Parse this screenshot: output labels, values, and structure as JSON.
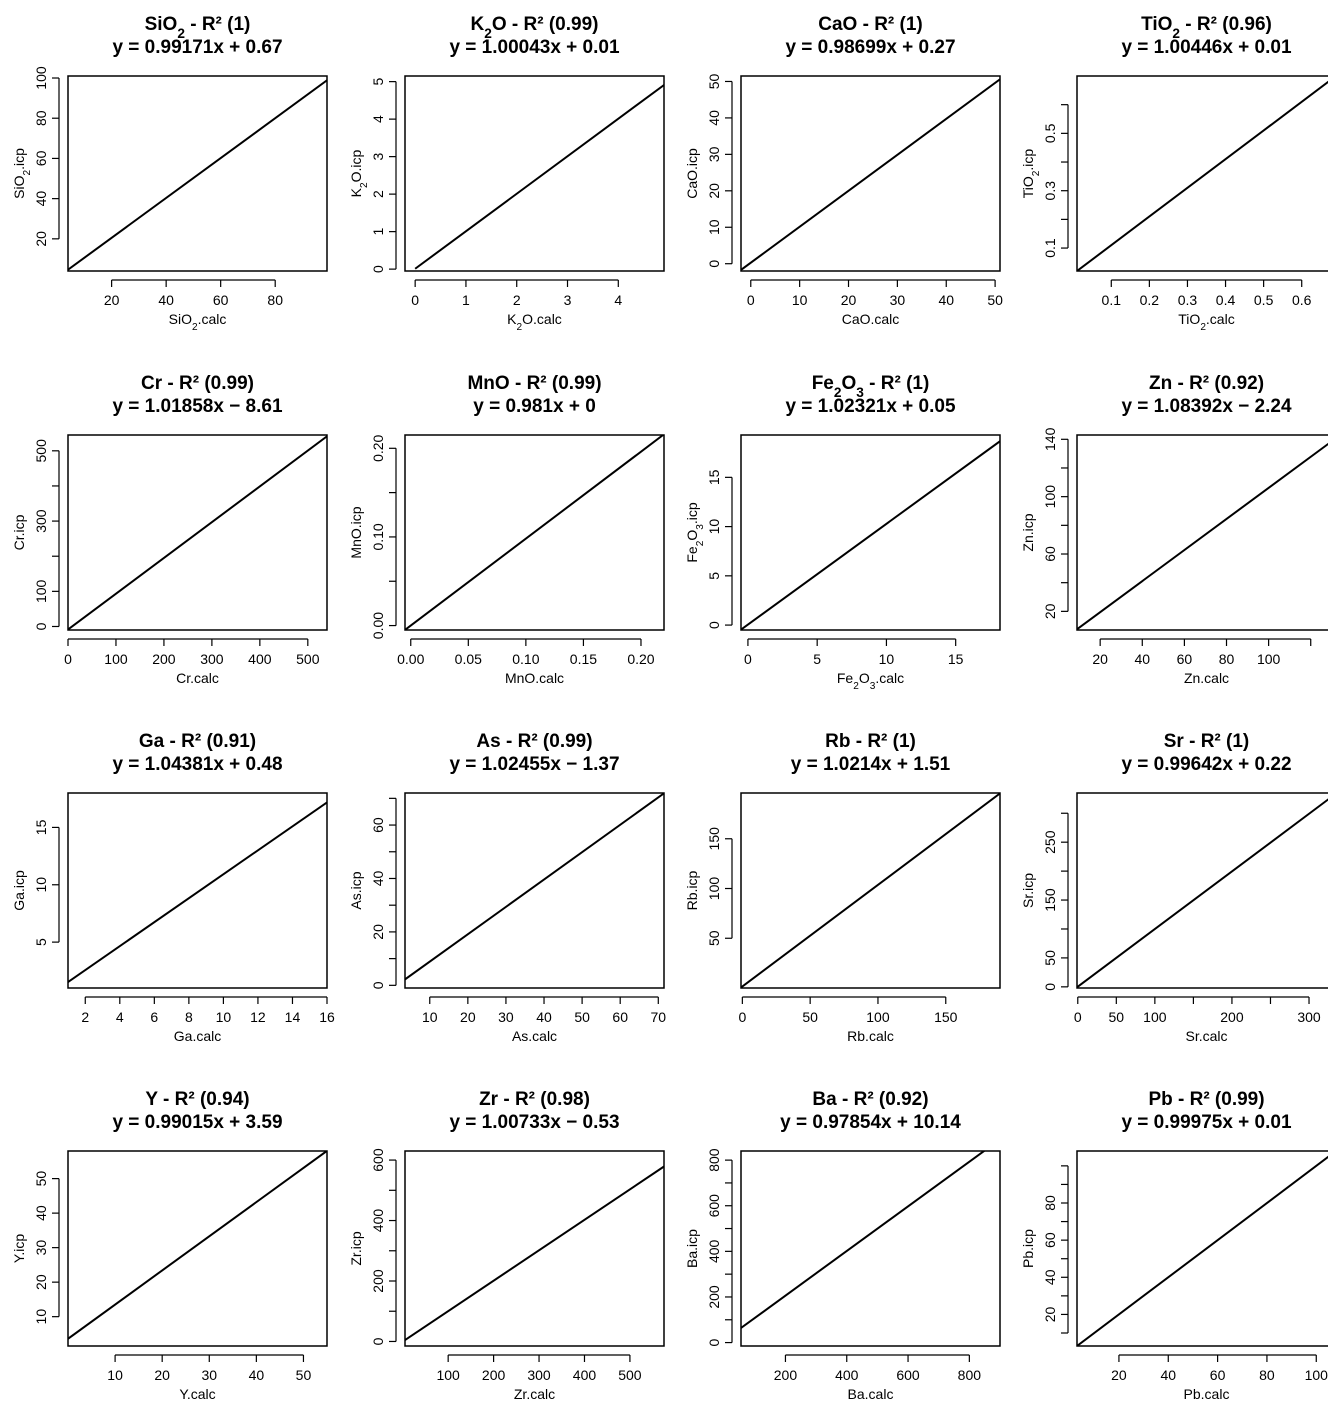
{
  "chart_data": [
    {
      "type": "line",
      "title": "SiO2 - R² (1)",
      "title_parts": [
        "SiO",
        "2",
        " - R² (1)"
      ],
      "subtitle": "y = 0.99171x + 0.67",
      "xlabel_parts": [
        "SiO",
        "2",
        ".calc"
      ],
      "ylabel_parts": [
        "SiO",
        "2",
        ".icp"
      ],
      "xlim": [
        4,
        99
      ],
      "ylim": [
        4,
        101
      ],
      "xticks": [
        20,
        40,
        60,
        80
      ],
      "yticks": [
        20,
        40,
        60,
        80,
        100
      ],
      "xminor": [],
      "yminor": [],
      "series": [
        {
          "x": [
            4,
            99
          ],
          "y": [
            4.64,
            98.85
          ]
        }
      ]
    },
    {
      "type": "line",
      "title": "K2O - R² (0.99)",
      "title_parts": [
        "K",
        "2",
        "O - R² (0.99)"
      ],
      "subtitle": "y = 1.00043x + 0.01",
      "xlabel_parts": [
        "K",
        "2",
        "O.calc"
      ],
      "ylabel_parts": [
        "K",
        "2",
        "O.icp"
      ],
      "xlim": [
        -0.2,
        4.9
      ],
      "ylim": [
        -0.05,
        5.15
      ],
      "xticks": [
        0,
        1,
        2,
        3,
        4
      ],
      "yticks": [
        0,
        1,
        2,
        3,
        4,
        5
      ],
      "xminor": [],
      "yminor": [],
      "series": [
        {
          "x": [
            0,
            4.9
          ],
          "y": [
            0.01,
            4.91
          ]
        }
      ]
    },
    {
      "type": "line",
      "title": "CaO - R² (1)",
      "title_parts": [
        "CaO - R² (1)"
      ],
      "subtitle": "y = 0.98699x + 0.27",
      "xlabel_parts": [
        "CaO.calc"
      ],
      "ylabel_parts": [
        "CaO.icp"
      ],
      "xlim": [
        -2,
        51
      ],
      "ylim": [
        -2,
        51.5
      ],
      "xticks": [
        0,
        10,
        20,
        30,
        40,
        50
      ],
      "yticks": [
        0,
        10,
        20,
        30,
        40,
        50
      ],
      "xminor": [],
      "yminor": [],
      "series": [
        {
          "x": [
            -2,
            51
          ],
          "y": [
            -1.7,
            50.6
          ]
        }
      ]
    },
    {
      "type": "line",
      "title": "TiO2 - R² (0.96)",
      "title_parts": [
        "TiO",
        "2",
        " - R² (0.96)"
      ],
      "subtitle": "y = 1.00446x + 0.01",
      "xlabel_parts": [
        "TiO",
        "2",
        ".calc"
      ],
      "ylabel_parts": [
        "TiO",
        "2",
        ".icp"
      ],
      "xlim": [
        0.01,
        0.69
      ],
      "ylim": [
        0.02,
        0.7
      ],
      "xticks": [
        0.1,
        0.2,
        0.3,
        0.4,
        0.5,
        0.6
      ],
      "yticks": [
        0.1,
        0.3,
        0.5
      ],
      "xminor": [],
      "yminor": [
        0.2,
        0.4,
        0.6
      ],
      "series": [
        {
          "x": [
            0.01,
            0.69
          ],
          "y": [
            0.02,
            0.7
          ]
        }
      ]
    },
    {
      "type": "line",
      "title": "Cr - R² (0.99)",
      "title_parts": [
        "Cr - R² (0.99)"
      ],
      "subtitle": "y = 1.01858x − 8.61",
      "xlabel_parts": [
        "Cr.calc"
      ],
      "ylabel_parts": [
        "Cr.icp"
      ],
      "xlim": [
        0,
        540
      ],
      "ylim": [
        -10,
        545
      ],
      "xticks": [
        0,
        100,
        200,
        300,
        400,
        500
      ],
      "yticks": [
        0,
        100,
        300,
        500
      ],
      "xminor": [],
      "yminor": [
        200,
        400
      ],
      "series": [
        {
          "x": [
            0,
            540
          ],
          "y": [
            -8.61,
            541.4
          ]
        }
      ]
    },
    {
      "type": "line",
      "title": "MnO - R² (0.99)",
      "title_parts": [
        "MnO - R² (0.99)"
      ],
      "subtitle": "y = 0.981x + 0",
      "xlabel_parts": [
        "MnO.calc"
      ],
      "ylabel_parts": [
        "MnO.icp"
      ],
      "xlim": [
        -0.005,
        0.22
      ],
      "ylim": [
        -0.005,
        0.215
      ],
      "xticks": [
        0,
        0.05,
        0.1,
        0.15,
        0.2
      ],
      "xticklabels": [
        "0.00",
        "0.05",
        "0.10",
        "0.15",
        "0.20"
      ],
      "yticks": [
        0,
        0.1,
        0.2
      ],
      "yticklabels": [
        "0.00",
        "0.10",
        "0.20"
      ],
      "xminor": [],
      "yminor": [
        0.05,
        0.15
      ],
      "series": [
        {
          "x": [
            -0.005,
            0.22
          ],
          "y": [
            -0.0049,
            0.2158
          ]
        }
      ]
    },
    {
      "type": "line",
      "title": "Fe2O3 - R² (1)",
      "title_parts": [
        "Fe",
        "2",
        "O",
        "3",
        " - R² (1)"
      ],
      "subtitle": "y = 1.02321x + 0.05",
      "xlabel_parts": [
        "Fe",
        "2",
        "O",
        "3",
        ".calc"
      ],
      "ylabel_parts": [
        "Fe",
        "2",
        "O",
        "3",
        ".icp"
      ],
      "xlim": [
        -0.5,
        18.2
      ],
      "ylim": [
        -0.5,
        19.3
      ],
      "xticks": [
        0,
        5,
        10,
        15
      ],
      "yticks": [
        0,
        5,
        10,
        15
      ],
      "xminor": [],
      "yminor": [],
      "series": [
        {
          "x": [
            -0.5,
            18.2
          ],
          "y": [
            -0.46,
            18.67
          ]
        }
      ]
    },
    {
      "type": "line",
      "title": "Zn - R² (0.92)",
      "title_parts": [
        "Zn - R² (0.92)"
      ],
      "subtitle": "y = 1.08392x − 2.24",
      "xlabel_parts": [
        "Zn.calc"
      ],
      "ylabel_parts": [
        "Zn.icp"
      ],
      "xlim": [
        9,
        132
      ],
      "ylim": [
        7,
        143
      ],
      "xticks": [
        20,
        40,
        60,
        80,
        100
      ],
      "yticks": [
        20,
        60,
        100,
        140
      ],
      "xminor": [
        120
      ],
      "yminor": [
        40,
        80,
        120
      ],
      "series": [
        {
          "x": [
            9,
            132
          ],
          "y": [
            7.51,
            140.8
          ]
        }
      ]
    },
    {
      "type": "line",
      "title": "Ga - R² (0.91)",
      "title_parts": [
        "Ga - R² (0.91)"
      ],
      "subtitle": "y = 1.04381x + 0.48",
      "xlabel_parts": [
        "Ga.calc"
      ],
      "ylabel_parts": [
        "Ga.icp"
      ],
      "xlim": [
        1,
        16
      ],
      "ylim": [
        1,
        18
      ],
      "xticks": [
        2,
        4,
        6,
        8,
        10,
        12,
        14,
        16
      ],
      "yticks": [
        5,
        10,
        15
      ],
      "xminor": [],
      "yminor": [],
      "series": [
        {
          "x": [
            1,
            16
          ],
          "y": [
            1.52,
            17.18
          ]
        }
      ]
    },
    {
      "type": "line",
      "title": "As - R² (0.99)",
      "title_parts": [
        "As - R² (0.99)"
      ],
      "subtitle": "y = 1.02455x − 1.37",
      "xlabel_parts": [
        "As.calc"
      ],
      "ylabel_parts": [
        "As.icp"
      ],
      "xlim": [
        3.5,
        71.5
      ],
      "ylim": [
        -1,
        72
      ],
      "xticks": [
        10,
        20,
        30,
        40,
        50,
        60,
        70
      ],
      "yticks": [
        0,
        20,
        40,
        60
      ],
      "xminor": [],
      "yminor": [
        10,
        30,
        50,
        70
      ],
      "series": [
        {
          "x": [
            3.5,
            71.5
          ],
          "y": [
            2.22,
            71.88
          ]
        }
      ]
    },
    {
      "type": "line",
      "title": "Rb - R² (1)",
      "title_parts": [
        "Rb - R² (1)"
      ],
      "subtitle": "y = 1.0214x + 1.51",
      "xlabel_parts": [
        "Rb.calc"
      ],
      "ylabel_parts": [
        "Rb.icp"
      ],
      "xlim": [
        -1,
        190
      ],
      "ylim": [
        0,
        196
      ],
      "xticks": [
        0,
        50,
        100,
        150
      ],
      "yticks": [
        50,
        100,
        150
      ],
      "xminor": [],
      "yminor": [],
      "series": [
        {
          "x": [
            -1,
            190
          ],
          "y": [
            0.49,
            195.6
          ]
        }
      ]
    },
    {
      "type": "line",
      "title": "Sr - R² (1)",
      "title_parts": [
        "Sr - R² (1)"
      ],
      "subtitle": "y = 0.99642x + 0.22",
      "xlabel_parts": [
        "Sr.calc"
      ],
      "ylabel_parts": [
        "Sr.icp"
      ],
      "xlim": [
        -1,
        335
      ],
      "ylim": [
        -2,
        335
      ],
      "xticks": [
        0,
        50,
        100,
        200,
        300
      ],
      "yticks": [
        0,
        50,
        150,
        250
      ],
      "xminor": [
        150,
        250
      ],
      "yminor": [
        100,
        200,
        300
      ],
      "series": [
        {
          "x": [
            -1,
            335
          ],
          "y": [
            -0.78,
            334
          ]
        }
      ]
    },
    {
      "type": "line",
      "title": "Y - R² (0.94)",
      "title_parts": [
        "Y - R² (0.94)"
      ],
      "subtitle": "y = 0.99015x + 3.59",
      "xlabel_parts": [
        "Y.calc"
      ],
      "ylabel_parts": [
        "Y.icp"
      ],
      "xlim": [
        0,
        55
      ],
      "ylim": [
        1.5,
        58
      ],
      "xticks": [
        10,
        20,
        30,
        40,
        50
      ],
      "yticks": [
        10,
        20,
        30,
        40,
        50
      ],
      "xminor": [],
      "yminor": [],
      "series": [
        {
          "x": [
            0,
            55
          ],
          "y": [
            3.59,
            58.05
          ]
        }
      ]
    },
    {
      "type": "line",
      "title": "Zr - R² (0.98)",
      "title_parts": [
        "Zr - R² (0.98)"
      ],
      "subtitle": "y = 1.00733x − 0.53",
      "xlabel_parts": [
        "Zr.calc"
      ],
      "ylabel_parts": [
        "Zr.icp"
      ],
      "xlim": [
        5,
        575
      ],
      "ylim": [
        -15,
        630
      ],
      "xticks": [
        100,
        200,
        300,
        400,
        500
      ],
      "yticks": [
        0,
        200,
        400,
        600
      ],
      "xminor": [],
      "yminor": [
        100,
        300,
        500
      ],
      "series": [
        {
          "x": [
            5,
            575
          ],
          "y": [
            4.5,
            578.7
          ]
        }
      ]
    },
    {
      "type": "line",
      "title": "Ba - R² (0.92)",
      "title_parts": [
        "Ba - R² (0.92)"
      ],
      "subtitle": "y = 0.97854x + 10.14",
      "xlabel_parts": [
        "Ba.calc"
      ],
      "ylabel_parts": [
        "Ba.icp"
      ],
      "xlim": [
        55,
        900
      ],
      "ylim": [
        -15,
        840
      ],
      "xticks": [
        200,
        400,
        600,
        800
      ],
      "yticks": [
        0,
        200,
        400,
        600,
        800
      ],
      "xminor": [],
      "yminor": [
        100,
        300,
        500,
        700
      ],
      "series": [
        {
          "x": [
            55,
            900
          ],
          "y": [
            63.96,
            890.8
          ]
        }
      ]
    },
    {
      "type": "line",
      "title": "Pb - R² (0.99)",
      "title_parts": [
        "Pb - R² (0.99)"
      ],
      "subtitle": "y = 0.99975x + 0.01",
      "xlabel_parts": [
        "Pb.calc"
      ],
      "ylabel_parts": [
        "Pb.icp"
      ],
      "xlim": [
        3,
        108
      ],
      "ylim": [
        3,
        108
      ],
      "xticks": [
        20,
        40,
        60,
        80,
        100
      ],
      "yticks": [
        20,
        40,
        60,
        80
      ],
      "xminor": [],
      "yminor": [
        10,
        30,
        50,
        70,
        90,
        100
      ],
      "series": [
        {
          "x": [
            3,
            108
          ],
          "y": [
            3.01,
            107.98
          ]
        }
      ]
    }
  ]
}
